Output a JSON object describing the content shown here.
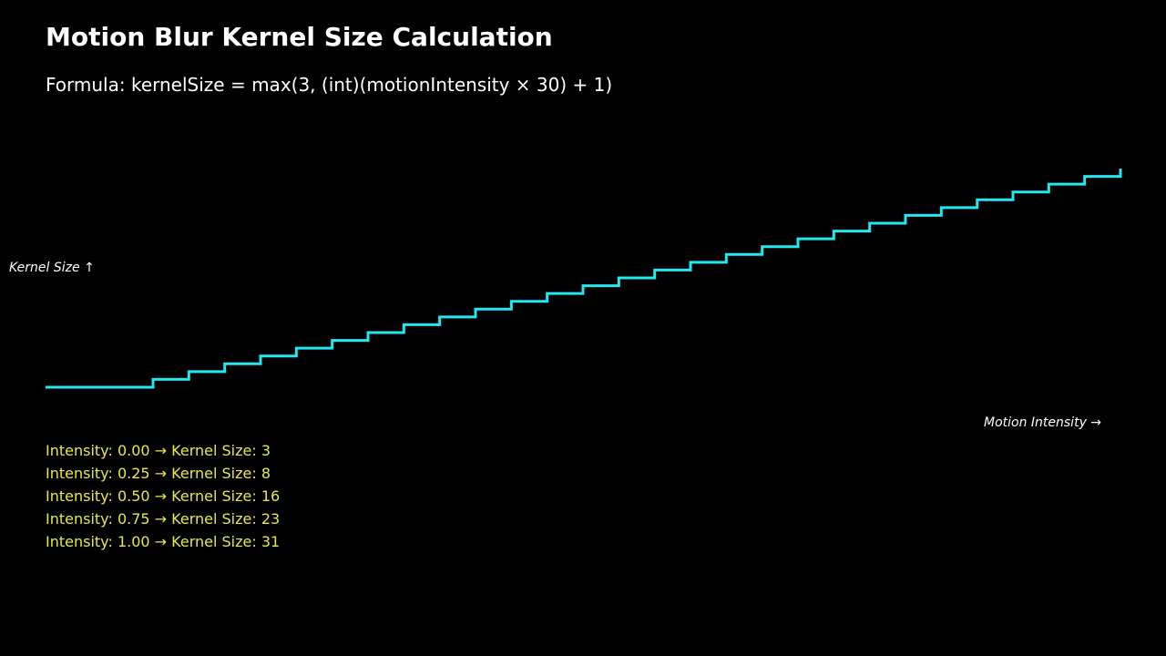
{
  "header": {
    "title": "Motion Blur Kernel Size Calculation",
    "formula": "Formula: kernelSize = max(3, (int)(motionIntensity × 30) + 1)"
  },
  "colors": {
    "background": "#000000",
    "line": "#22e8f0",
    "samples_text": "#e8e84a",
    "text": "#ffffff"
  },
  "chart_data": {
    "type": "line",
    "step": true,
    "xlabel": "Motion Intensity →",
    "ylabel": "Kernel Size ↑",
    "xlim": [
      0,
      1
    ],
    "ylim": [
      3,
      31
    ],
    "series": [
      {
        "x": [
          0.0,
          0.1,
          0.1333,
          0.1667,
          0.2,
          0.2333,
          0.2667,
          0.3,
          0.3333,
          0.3667,
          0.4,
          0.4333,
          0.4667,
          0.5,
          0.5333,
          0.5667,
          0.6,
          0.6333,
          0.6667,
          0.7,
          0.7333,
          0.7667,
          0.8,
          0.8333,
          0.8667,
          0.9,
          0.9333,
          0.9667,
          1.0
        ],
        "y": [
          3,
          4,
          5,
          6,
          7,
          8,
          9,
          10,
          11,
          12,
          13,
          14,
          15,
          16,
          17,
          18,
          19,
          20,
          21,
          22,
          23,
          24,
          25,
          26,
          27,
          28,
          29,
          30,
          31
        ]
      }
    ],
    "grid": false,
    "legend": "none"
  },
  "samples": [
    {
      "label": "Intensity: 0.00 → Kernel Size: 3"
    },
    {
      "label": "Intensity: 0.25 → Kernel Size: 8"
    },
    {
      "label": "Intensity: 0.50 → Kernel Size: 16"
    },
    {
      "label": "Intensity: 0.75 → Kernel Size: 23"
    },
    {
      "label": "Intensity: 1.00 → Kernel Size: 31"
    }
  ]
}
